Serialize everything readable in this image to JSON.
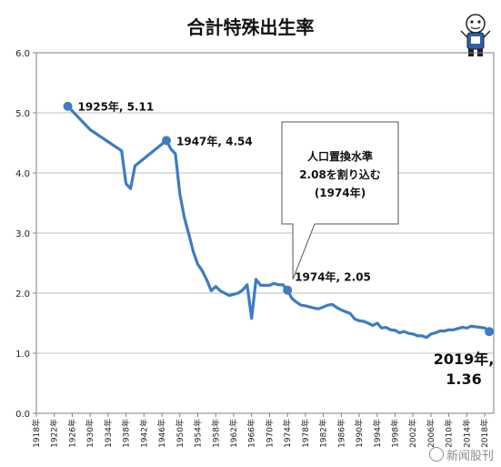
{
  "colors": {
    "line": "#3d7cc2",
    "grid": "#bfbfbf",
    "axis": "#808080",
    "plot_border": "#808080"
  },
  "mascot_icon": "cartoon-character-icon",
  "watermark": "新闻股刊",
  "chart_data": {
    "type": "line",
    "title": "合計特殊出生率",
    "xlabel": "",
    "ylabel": "",
    "ylim": [
      0,
      6
    ],
    "xlim": [
      1918,
      2020
    ],
    "y_ticks": [
      "0.0",
      "1.0",
      "2.0",
      "3.0",
      "4.0",
      "5.0",
      "6.0"
    ],
    "x_ticks": [
      "1918年",
      "1922年",
      "1926年",
      "1930年",
      "1934年",
      "1938年",
      "1942年",
      "1946年",
      "1950年",
      "1954年",
      "1958年",
      "1962年",
      "1966年",
      "1970年",
      "1974年",
      "1978年",
      "1982年",
      "1986年",
      "1990年",
      "1994年",
      "1998年",
      "2002年",
      "2006年",
      "2010年",
      "2014年",
      "2018年"
    ],
    "x_tick_values": [
      1918,
      1922,
      1926,
      1930,
      1934,
      1938,
      1942,
      1946,
      1950,
      1954,
      1958,
      1962,
      1966,
      1970,
      1974,
      1978,
      1982,
      1986,
      1990,
      1994,
      1998,
      2002,
      2006,
      2010,
      2014,
      2018
    ],
    "grid": true,
    "series": [
      {
        "x": [
          1925,
          1930,
          1937,
          1938,
          1939,
          1940,
          1947,
          1948,
          1949,
          1950,
          1951,
          1952,
          1953,
          1954,
          1955,
          1956,
          1957,
          1958,
          1959,
          1960,
          1961,
          1962,
          1963,
          1964,
          1965,
          1966,
          1967,
          1968,
          1969,
          1970,
          1971,
          1972,
          1973,
          1974,
          1975,
          1976,
          1977,
          1978,
          1979,
          1980,
          1981,
          1982,
          1983,
          1984,
          1985,
          1986,
          1987,
          1988,
          1989,
          1990,
          1991,
          1992,
          1993,
          1994,
          1995,
          1996,
          1997,
          1998,
          1999,
          2000,
          2001,
          2002,
          2003,
          2004,
          2005,
          2006,
          2007,
          2008,
          2009,
          2010,
          2011,
          2012,
          2013,
          2014,
          2015,
          2016,
          2017,
          2018,
          2019
        ],
        "y": [
          5.11,
          4.72,
          4.37,
          3.82,
          3.74,
          4.12,
          4.54,
          4.4,
          4.32,
          3.65,
          3.26,
          2.98,
          2.69,
          2.48,
          2.37,
          2.22,
          2.04,
          2.11,
          2.04,
          2.0,
          1.96,
          1.98,
          2.0,
          2.05,
          2.14,
          1.58,
          2.23,
          2.13,
          2.13,
          2.13,
          2.16,
          2.14,
          2.14,
          2.05,
          1.91,
          1.85,
          1.8,
          1.79,
          1.77,
          1.75,
          1.74,
          1.77,
          1.8,
          1.81,
          1.76,
          1.72,
          1.69,
          1.66,
          1.57,
          1.54,
          1.53,
          1.5,
          1.46,
          1.5,
          1.42,
          1.43,
          1.39,
          1.38,
          1.34,
          1.36,
          1.33,
          1.32,
          1.29,
          1.29,
          1.26,
          1.32,
          1.34,
          1.37,
          1.37,
          1.39,
          1.39,
          1.41,
          1.43,
          1.42,
          1.45,
          1.44,
          1.43,
          1.42,
          1.36
        ]
      }
    ],
    "highlights": [
      {
        "x": 1925,
        "y": 5.11,
        "label": "1925年, 5.11"
      },
      {
        "x": 1947,
        "y": 4.54,
        "label": "1947年, 4.54"
      },
      {
        "x": 1974,
        "y": 2.05,
        "label": "1974年, 2.05"
      },
      {
        "x": 2019,
        "y": 1.36,
        "label_line1": "2019年,",
        "label_line2": "1.36"
      }
    ],
    "callout": {
      "line1": "人口置換水準",
      "line2": "2.08を割り込む",
      "line3": "(1974年)"
    }
  }
}
